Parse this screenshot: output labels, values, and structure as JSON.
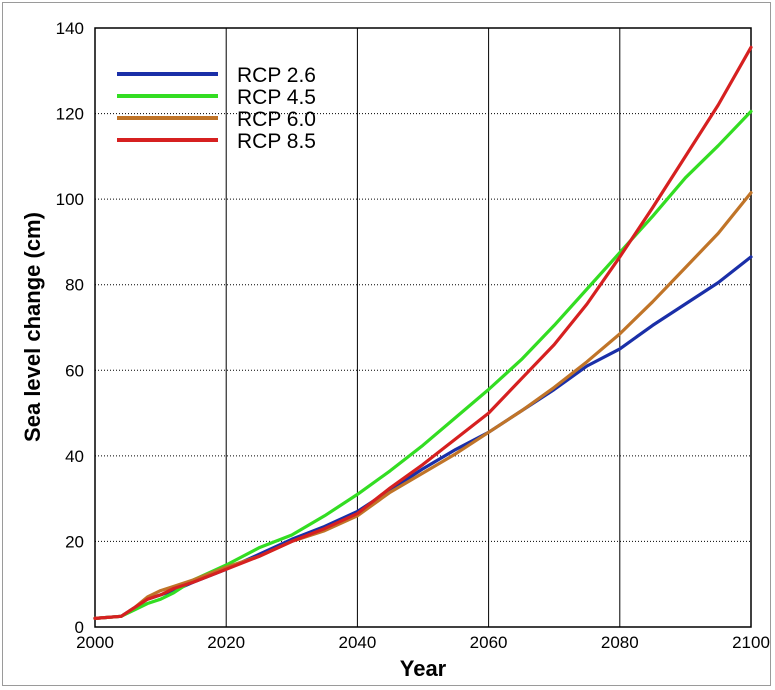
{
  "chart_data": {
    "type": "line",
    "title": "",
    "xlabel": "Year",
    "ylabel": "Sea level change (cm)",
    "xlim": [
      2000,
      2100
    ],
    "ylim": [
      0,
      140
    ],
    "xticks": [
      "2000",
      "2020",
      "2040",
      "2060",
      "2080",
      "2100"
    ],
    "yticks": [
      "0",
      "20",
      "40",
      "60",
      "80",
      "100",
      "120",
      "140"
    ],
    "grid": {
      "vertical": "solid",
      "horizontal": "dotted"
    },
    "legend_position": "top-left",
    "x": [
      2000,
      2004,
      2006,
      2008,
      2010,
      2012,
      2015,
      2020,
      2025,
      2030,
      2035,
      2040,
      2045,
      2050,
      2055,
      2060,
      2065,
      2070,
      2075,
      2080,
      2085,
      2090,
      2095,
      2100
    ],
    "series": [
      {
        "name": "RCP 2.6",
        "color": "#1a2fa8",
        "values": [
          2,
          2.5,
          4.5,
          6.5,
          7.5,
          8.5,
          10.5,
          13.5,
          17,
          20.5,
          23.5,
          27,
          32,
          37,
          41.5,
          45.5,
          50.5,
          55.5,
          61,
          65,
          70.5,
          75.5,
          80.5,
          86.5
        ]
      },
      {
        "name": "RCP 4.5",
        "color": "#33dd22",
        "values": [
          2,
          2.5,
          4,
          5.5,
          6.5,
          8,
          11,
          14.5,
          18.5,
          21.5,
          26,
          31,
          36.5,
          42.5,
          49,
          55.5,
          62.5,
          70.5,
          79,
          87.5,
          96,
          105,
          112.5,
          120.5
        ]
      },
      {
        "name": "RCP 6.0",
        "color": "#c07428",
        "values": [
          2,
          2.5,
          4.5,
          7,
          8.5,
          9.5,
          11,
          14,
          16.5,
          20,
          22.5,
          26,
          31.5,
          36,
          40.5,
          45.5,
          50.5,
          56,
          62,
          68.5,
          76,
          84,
          92,
          101.5
        ]
      },
      {
        "name": "RCP 8.5",
        "color": "#d62020",
        "values": [
          2,
          2.5,
          4.5,
          6.5,
          7.5,
          9,
          10.5,
          13.5,
          16.5,
          20,
          23,
          26.5,
          32.5,
          38,
          44,
          50,
          58,
          66,
          75.5,
          86.5,
          98,
          110,
          122,
          135.5
        ]
      }
    ]
  }
}
